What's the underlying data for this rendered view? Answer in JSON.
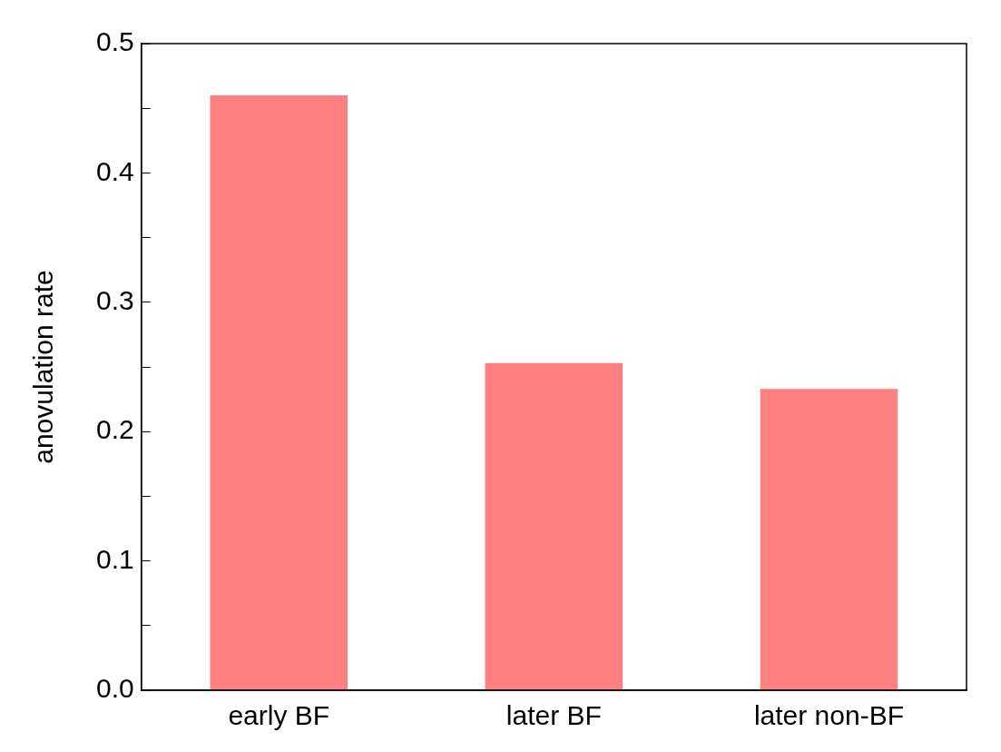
{
  "chart_data": {
    "type": "bar",
    "ylabel": "anovulation rate",
    "categories": [
      "early BF",
      "later BF",
      "later non-BF"
    ],
    "values": [
      0.46,
      0.253,
      0.233
    ],
    "color": "#ff8080",
    "ylim": [
      0,
      0.5
    ],
    "yticks": [
      {
        "value": 0,
        "label": "0.0"
      },
      {
        "value": 0.05,
        "label": null
      },
      0.1,
      {
        "value": 0.15,
        "label": null
      },
      0.2,
      {
        "value": 0.25,
        "label": null
      },
      0.3,
      {
        "value": 0.35,
        "label": null
      },
      0.4,
      {
        "value": 0.45,
        "label": null
      },
      0.5
    ],
    "grid": false,
    "legend": false
  }
}
